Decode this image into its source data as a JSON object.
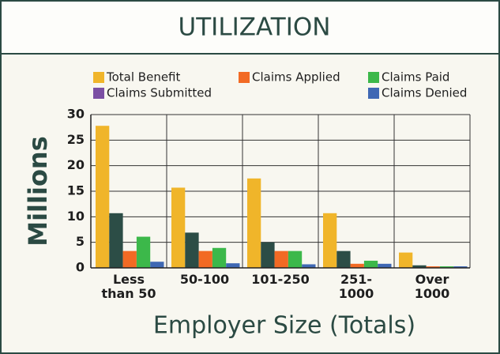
{
  "chart_data": {
    "type": "bar",
    "title": "UTILIZATION",
    "xlabel": "Employer Size (Totals)",
    "ylabel": "Millions",
    "categories": [
      "Less than 50",
      "50-100",
      "101-250",
      "251-1000",
      "Over 1000"
    ],
    "series": [
      {
        "name": "Total Benefit",
        "color": "#f0b52a",
        "values": [
          27.8,
          15.7,
          17.5,
          10.7,
          3.0
        ]
      },
      {
        "name": "Claims Submitted",
        "color": "#2c4d46",
        "legend_color": "#7b4fa3",
        "values": [
          10.7,
          6.9,
          5.0,
          3.3,
          0.5
        ]
      },
      {
        "name": "Claims Applied",
        "color": "#f26a24",
        "values": [
          3.3,
          3.3,
          3.3,
          0.8,
          0.3
        ]
      },
      {
        "name": "Claims Paid",
        "color": "#3cb84a",
        "values": [
          6.1,
          3.9,
          3.3,
          1.4,
          0.3
        ]
      },
      {
        "name": "Claims Denied",
        "color": "#3f68b4",
        "values": [
          1.2,
          0.9,
          0.7,
          0.8,
          0.3
        ]
      }
    ],
    "ylim": [
      0,
      30
    ],
    "yticks": [
      0,
      5,
      10,
      15,
      20,
      25,
      30
    ],
    "grid": true
  }
}
